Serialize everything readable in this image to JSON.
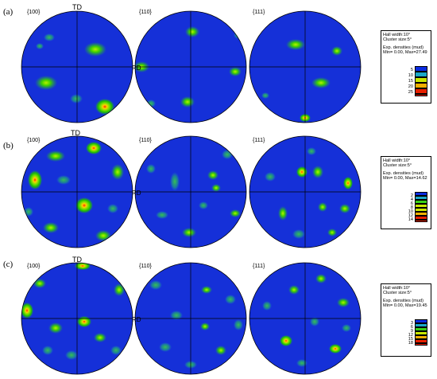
{
  "rows": [
    {
      "label": "(a)",
      "poles": [
        "{100}",
        "{110}",
        "{111}"
      ],
      "td_label": "TD",
      "rd_label": "RD",
      "legend": {
        "half_width": "Hall width:10°",
        "cluster": "Cluster size:5°",
        "exp": "Exp. densities (mud)",
        "minmax": "Min= 0.00, Max=27.49",
        "levels": [
          "5",
          "10",
          "15",
          "20",
          "25"
        ]
      }
    },
    {
      "label": "(b)",
      "poles": [
        "{100}",
        "{110}",
        "{111}"
      ],
      "td_label": "TD",
      "rd_label": "RD",
      "legend": {
        "half_width": "Hall width:10°",
        "cluster": "Cluster size:5°",
        "exp": "Exp. densities (mud)",
        "minmax": "Min= 0.00, Max=14.62",
        "levels": [
          "2",
          "4",
          "6",
          "8",
          "10",
          "12",
          "14"
        ]
      }
    },
    {
      "label": "(c)",
      "poles": [
        "{100}",
        "{110}",
        "{111}"
      ],
      "td_label": "TD",
      "rd_label": "RD",
      "legend": {
        "half_width": "Hall width:10°",
        "cluster": "Cluster size:5°",
        "exp": "Exp. densities (mud)",
        "minmax": "Min= 0.00, Max=19.45",
        "levels": [
          "3",
          "6",
          "9",
          "12",
          "15",
          "18"
        ]
      }
    }
  ],
  "colors": {
    "background": "#1530d8",
    "scale": [
      "#0a2be0",
      "#1aa8c8",
      "#38d018",
      "#c8e800",
      "#f0b000",
      "#e82000"
    ]
  }
}
